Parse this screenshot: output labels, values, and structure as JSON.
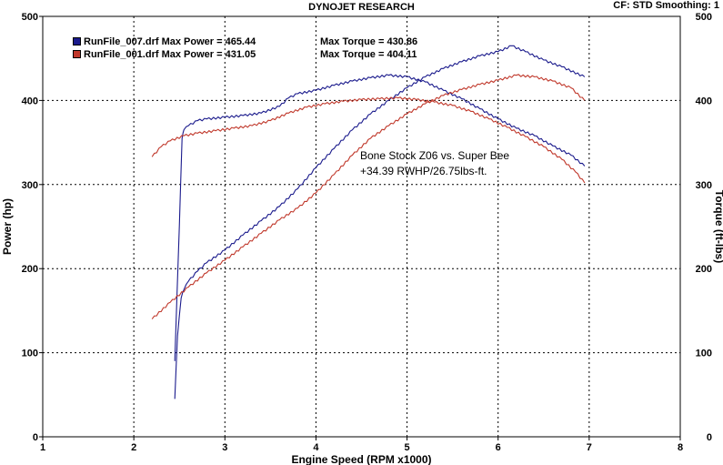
{
  "header": {
    "title": "DYNOJET RESEARCH",
    "info": "CF: STD  Smoothing: 1"
  },
  "legend": [
    {
      "label": "RunFile_007.drf Max Power = 465.44",
      "torque": "Max Torque = 430.86",
      "color": "#1a1a8c"
    },
    {
      "label": "RunFile_001.drf Max Power = 431.05",
      "torque": "Max Torque = 404.11",
      "color": "#c0382b"
    }
  ],
  "annotation": {
    "line1": "Bone Stock Z06 vs. Super Bee",
    "line2": "+34.39 RWHP/26.75lbs-ft."
  },
  "chart_data": {
    "type": "line",
    "xlabel": "Engine Speed (RPM x1000)",
    "ylabel": "Power (hp)",
    "y2label": "Torque (ft-lbs)",
    "xlim": [
      1,
      8
    ],
    "ylim": [
      0,
      500
    ],
    "y2lim": [
      0,
      500
    ],
    "xticks": [
      "1",
      "2",
      "3",
      "4",
      "5",
      "6",
      "7",
      "8"
    ],
    "yticks": [
      "0",
      "100",
      "200",
      "300",
      "400",
      "500"
    ],
    "y2ticks": [
      "0",
      "100",
      "200",
      "300",
      "400",
      "500"
    ],
    "grid": true,
    "series": [
      {
        "name": "RunFile_007.drf",
        "kind": "power",
        "color": "#1a1a8c",
        "x": [
          2.45,
          2.48,
          2.52,
          2.55,
          2.6,
          2.7,
          2.8,
          3.0,
          3.2,
          3.4,
          3.6,
          3.8,
          4.0,
          4.2,
          4.4,
          4.6,
          4.8,
          5.0,
          5.2,
          5.4,
          5.6,
          5.8,
          6.0,
          6.15,
          6.3,
          6.5,
          6.7,
          6.95
        ],
        "y": [
          45,
          120,
          165,
          175,
          185,
          197,
          207,
          222,
          240,
          257,
          274,
          295,
          320,
          343,
          365,
          384,
          400,
          415,
          428,
          438,
          446,
          453,
          458,
          465,
          458,
          448,
          440,
          428
        ]
      },
      {
        "name": "RunFile_007.drf",
        "kind": "torque",
        "color": "#1a1a8c",
        "x": [
          2.45,
          2.5,
          2.53,
          2.55,
          2.6,
          2.7,
          2.8,
          3.0,
          3.2,
          3.4,
          3.6,
          3.7,
          3.8,
          4.0,
          4.2,
          4.4,
          4.6,
          4.8,
          5.0,
          5.2,
          5.4,
          5.6,
          5.8,
          6.0,
          6.2,
          6.4,
          6.6,
          6.8,
          6.95
        ],
        "y": [
          90,
          250,
          355,
          365,
          370,
          376,
          378,
          380,
          382,
          385,
          393,
          403,
          408,
          412,
          418,
          423,
          427,
          430,
          428,
          422,
          412,
          402,
          390,
          378,
          367,
          358,
          346,
          335,
          322
        ]
      },
      {
        "name": "RunFile_001.drf",
        "kind": "power",
        "color": "#c0382b",
        "x": [
          2.2,
          2.4,
          2.6,
          2.8,
          3.0,
          3.2,
          3.4,
          3.6,
          3.8,
          4.0,
          4.2,
          4.4,
          4.6,
          4.8,
          5.0,
          5.2,
          5.4,
          5.6,
          5.8,
          6.0,
          6.2,
          6.4,
          6.6,
          6.8,
          6.95
        ],
        "y": [
          140,
          160,
          178,
          195,
          210,
          226,
          242,
          258,
          272,
          290,
          312,
          335,
          355,
          370,
          384,
          396,
          406,
          413,
          419,
          424,
          430,
          428,
          423,
          415,
          400
        ]
      },
      {
        "name": "RunFile_001.drf",
        "kind": "torque",
        "color": "#c0382b",
        "x": [
          2.2,
          2.3,
          2.4,
          2.55,
          2.7,
          2.9,
          3.1,
          3.3,
          3.5,
          3.7,
          3.9,
          4.1,
          4.3,
          4.5,
          4.7,
          4.9,
          5.1,
          5.3,
          5.5,
          5.7,
          5.9,
          6.1,
          6.3,
          6.5,
          6.7,
          6.85,
          6.95
        ],
        "y": [
          333,
          345,
          352,
          358,
          361,
          364,
          367,
          370,
          376,
          385,
          392,
          396,
          399,
          401,
          402,
          403,
          401,
          398,
          394,
          387,
          378,
          368,
          357,
          345,
          330,
          315,
          302
        ]
      }
    ]
  }
}
